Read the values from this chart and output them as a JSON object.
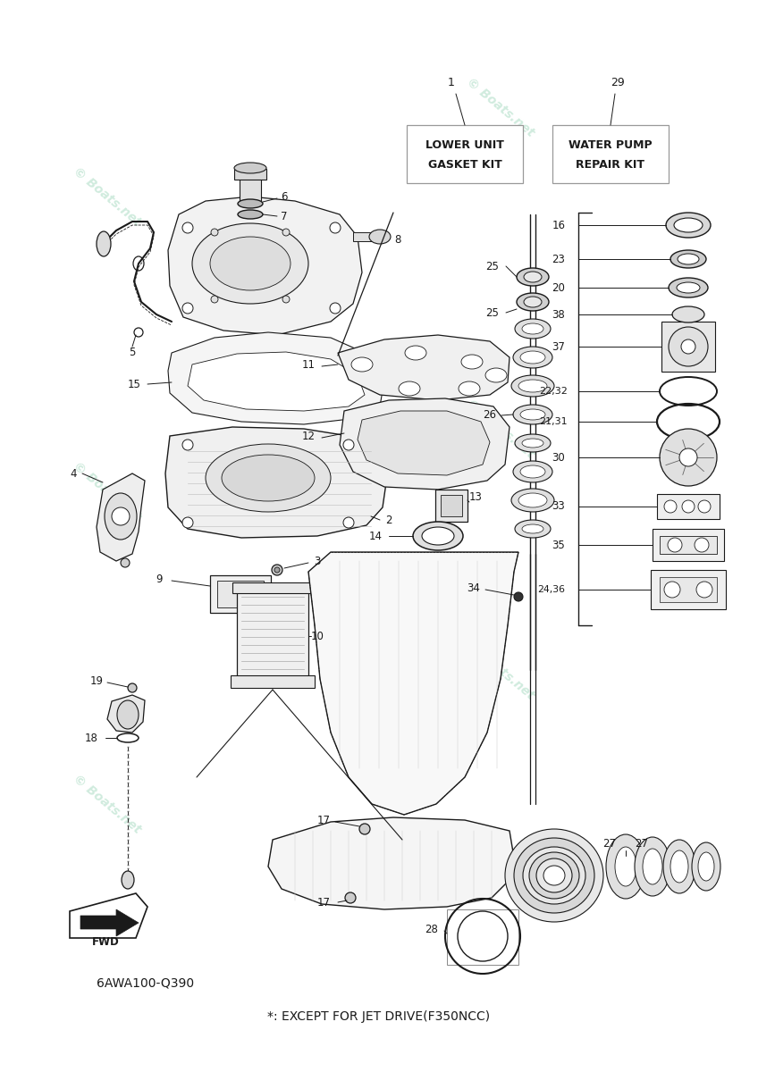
{
  "bg_color": "#ffffff",
  "wm_color": "#c8e8d8",
  "line_color": "#1a1a1a",
  "box1_text1": "LOWER UNIT",
  "box1_text2": "GASKET KIT",
  "box2_text1": "WATER PUMP",
  "box2_text2": "REPAIR KIT",
  "bottom_text1": "6AWA100-Q390",
  "bottom_text2": "*: EXCEPT FOR JET DRIVE(F350NCC)",
  "fwd_text": "FWD"
}
